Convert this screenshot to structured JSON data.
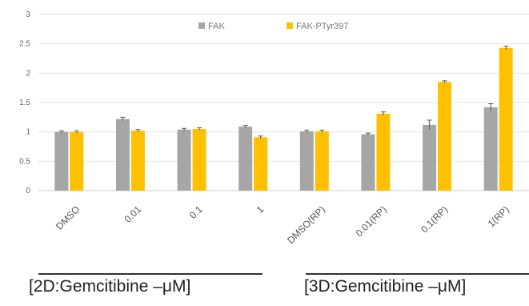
{
  "chart_data": {
    "type": "bar",
    "categories": [
      "DMSO",
      "0.01",
      "0.1",
      "1",
      "DMSO(RP)",
      "0.01(RP)",
      "0.1(RP)",
      "1(RP)"
    ],
    "series": [
      {
        "name": "FAK",
        "color": "#a6a6a6",
        "values": [
          1.0,
          1.22,
          1.04,
          1.09,
          1.01,
          0.96,
          1.12,
          1.42
        ],
        "errors": [
          0.02,
          0.03,
          0.02,
          0.02,
          0.02,
          0.02,
          0.08,
          0.06
        ]
      },
      {
        "name": "FAK-PTyr397",
        "color": "#ffc000",
        "values": [
          1.0,
          1.02,
          1.05,
          0.91,
          1.01,
          1.31,
          1.85,
          2.43
        ],
        "errors": [
          0.02,
          0.02,
          0.02,
          0.02,
          0.02,
          0.03,
          0.02,
          0.03
        ]
      }
    ],
    "ylim": [
      0,
      3
    ],
    "yticks": [
      "0",
      "0.5",
      "1",
      "1.5",
      "2",
      "2.5",
      "3"
    ],
    "legend_position": "top",
    "grid": true,
    "groups": [
      "[2D:Gemcitibine –μM]",
      "[3D:Gemcitibine –μM]"
    ]
  }
}
